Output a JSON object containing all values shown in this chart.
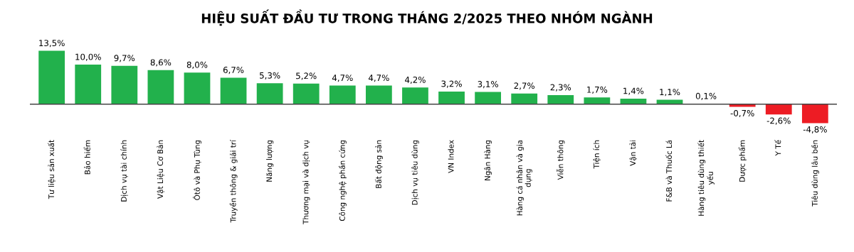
{
  "chart_data": {
    "type": "bar",
    "title": "HIỆU SUẤT ĐẦU TƯ TRONG THÁNG 2/2025 THEO NHÓM NGÀNH",
    "categories": [
      "Tư liệu sản xuất",
      "Bảo hiểm",
      "Dịch vụ tài chính",
      "Vật Liệu Cơ Bản",
      "Ôtô và Phụ Tùng",
      "Truyền thông & giải trí",
      "Năng lượng",
      "Thương mại và dịch vụ",
      "Công nghệ phần cứng",
      "Bất động sản",
      "Dịch vụ tiêu dùng",
      "VN Index",
      "Ngân Hàng",
      "Hàng cá nhân và gia\ndụng",
      "Viễn thông",
      "Tiện ích",
      "Vận tải",
      "F&B và Thuốc Lá",
      "Hàng tiêu dùng thiết\nyếu",
      "Dược phẩm",
      "Y Tế",
      "Tiêu dùng lâu bền"
    ],
    "values": [
      13.5,
      10.0,
      9.7,
      8.6,
      8.0,
      6.7,
      5.3,
      5.2,
      4.7,
      4.7,
      4.2,
      3.2,
      3.1,
      2.7,
      2.3,
      1.7,
      1.4,
      1.1,
      0.1,
      -0.7,
      -2.6,
      -4.8
    ],
    "value_labels": [
      "13,5%",
      "10,0%",
      "9,7%",
      "8,6%",
      "8,0%",
      "6,7%",
      "5,3%",
      "5,2%",
      "4,7%",
      "4,7%",
      "4,2%",
      "3,2%",
      "3,1%",
      "2,7%",
      "2,3%",
      "1,7%",
      "1,4%",
      "1,1%",
      "0,1%",
      "-0,7%",
      "-2,6%",
      "-4,8%"
    ],
    "colors": [
      "#22b14c",
      "#22b14c",
      "#22b14c",
      "#22b14c",
      "#22b14c",
      "#22b14c",
      "#22b14c",
      "#22b14c",
      "#22b14c",
      "#22b14c",
      "#22b14c",
      "#22b14c",
      "#22b14c",
      "#22b14c",
      "#22b14c",
      "#22b14c",
      "#22b14c",
      "#22b14c",
      "#22b14c",
      "#ed1c24",
      "#ed1c24",
      "#ed1c24"
    ],
    "grid": false,
    "legend": false
  }
}
